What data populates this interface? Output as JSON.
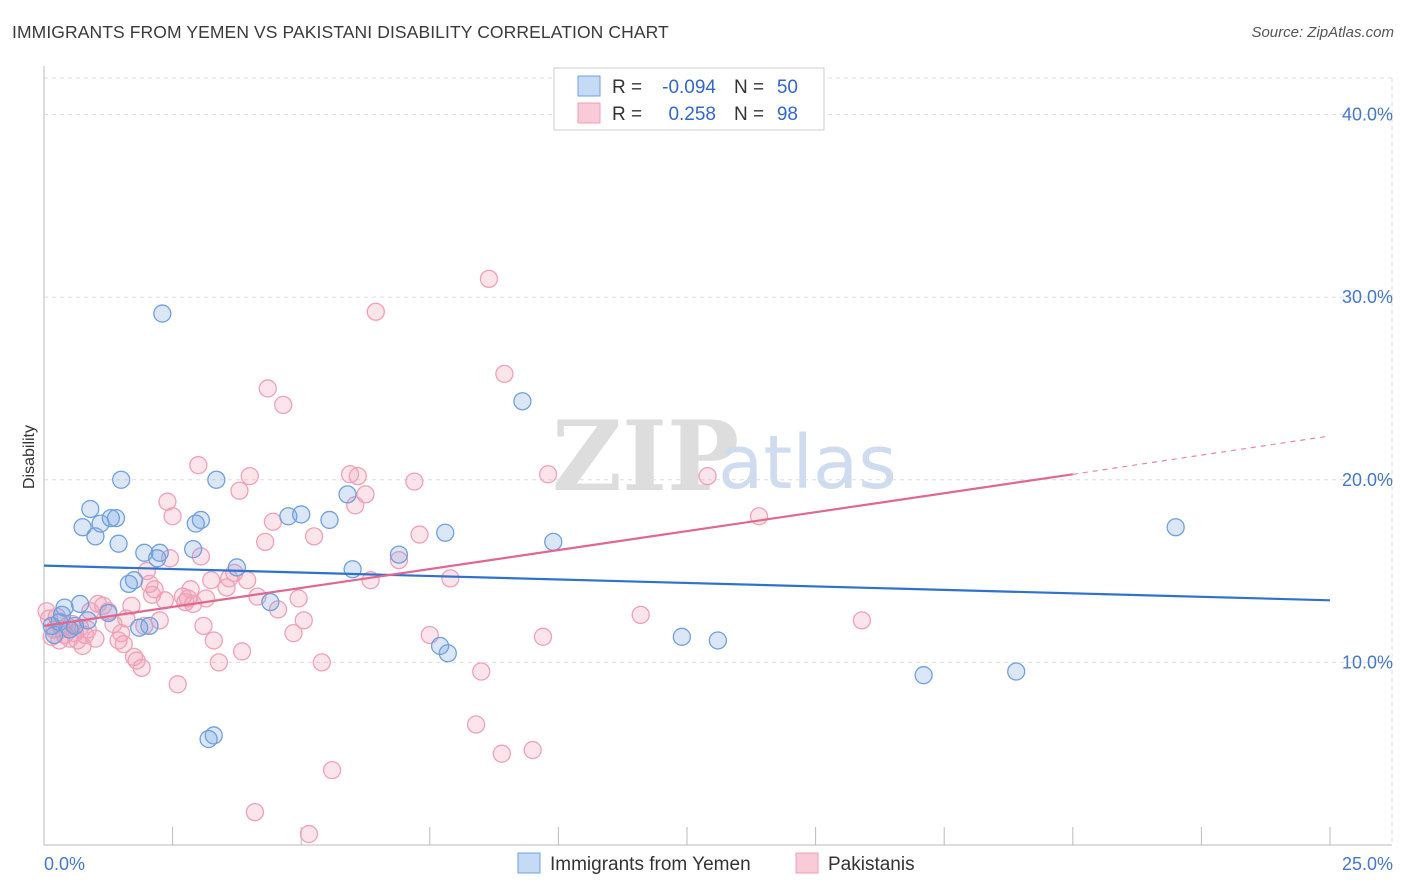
{
  "header": {
    "title": "IMMIGRANTS FROM YEMEN VS PAKISTANI DISABILITY CORRELATION CHART",
    "source": "Source: ZipAtlas.com"
  },
  "watermark": {
    "zip": "ZIP",
    "atlas": "atlas"
  },
  "colors": {
    "blue": "#6fa0e0",
    "blue_line": "#2e72cc",
    "pink": "#f0a0b8",
    "pink_line": "#e06890",
    "axis_text": "#4477cc",
    "grid": "#dddddd"
  },
  "legend": {
    "rows": [
      {
        "r_label": "R =",
        "r_value": "-0.094",
        "n_label": "N =",
        "n_value": "50"
      },
      {
        "r_label": "R =",
        "r_value": "0.258",
        "n_label": "N =",
        "n_value": "98"
      }
    ]
  },
  "chart_data": {
    "type": "scatter",
    "title": "IMMIGRANTS FROM YEMEN VS PAKISTANI DISABILITY CORRELATION CHART",
    "xlabel": "",
    "ylabel": "Disability",
    "xlim": [
      0,
      25
    ],
    "ylim": [
      0,
      42
    ],
    "x_tick_labels": [
      "0.0%",
      "25.0%"
    ],
    "y_ticks": [
      10,
      20,
      30,
      40
    ],
    "y_tick_labels": [
      "10.0%",
      "20.0%",
      "30.0%",
      "40.0%"
    ],
    "series": [
      {
        "name": "Immigrants from Yemen",
        "r": -0.094,
        "n": 50,
        "trend": {
          "x0": 0,
          "y0": 15.3,
          "x1": 25,
          "y1": 13.4
        },
        "points": [
          [
            0.2,
            11.5
          ],
          [
            0.3,
            12.2
          ],
          [
            0.35,
            12.6
          ],
          [
            0.4,
            13.0
          ],
          [
            0.5,
            11.8
          ],
          [
            0.6,
            12.0
          ],
          [
            0.7,
            13.2
          ],
          [
            0.75,
            17.4
          ],
          [
            0.85,
            12.3
          ],
          [
            0.9,
            18.4
          ],
          [
            1.0,
            16.9
          ],
          [
            1.1,
            17.6
          ],
          [
            1.25,
            12.7
          ],
          [
            1.3,
            17.9
          ],
          [
            1.4,
            17.9
          ],
          [
            1.45,
            16.5
          ],
          [
            1.5,
            20.0
          ],
          [
            1.65,
            14.3
          ],
          [
            1.75,
            14.5
          ],
          [
            1.85,
            11.9
          ],
          [
            1.95,
            16.0
          ],
          [
            2.05,
            12.0
          ],
          [
            2.2,
            15.7
          ],
          [
            2.25,
            16.0
          ],
          [
            2.3,
            29.1
          ],
          [
            2.9,
            16.2
          ],
          [
            2.95,
            17.6
          ],
          [
            3.05,
            17.8
          ],
          [
            3.2,
            5.8
          ],
          [
            3.3,
            6.0
          ],
          [
            3.35,
            20.0
          ],
          [
            3.75,
            15.2
          ],
          [
            4.4,
            13.3
          ],
          [
            4.75,
            18.0
          ],
          [
            5.0,
            18.1
          ],
          [
            5.55,
            17.8
          ],
          [
            5.9,
            19.2
          ],
          [
            6.0,
            15.1
          ],
          [
            6.9,
            15.9
          ],
          [
            7.7,
            10.9
          ],
          [
            7.85,
            10.5
          ],
          [
            7.8,
            17.1
          ],
          [
            9.3,
            24.3
          ],
          [
            9.9,
            16.6
          ],
          [
            12.4,
            11.4
          ],
          [
            13.1,
            11.2
          ],
          [
            17.1,
            9.3
          ],
          [
            18.9,
            9.5
          ],
          [
            22.0,
            17.4
          ],
          [
            0.15,
            12.0
          ]
        ]
      },
      {
        "name": "Pakistanis",
        "r": 0.258,
        "n": 98,
        "trend": {
          "x0": 0,
          "y0": 12.0,
          "x1": 20,
          "y1": 20.3
        },
        "trend_dashed": {
          "x0": 20,
          "y0": 20.3,
          "x1": 25,
          "y1": 22.4
        },
        "points": [
          [
            0.1,
            12.4
          ],
          [
            0.15,
            11.4
          ],
          [
            0.2,
            11.8
          ],
          [
            0.25,
            12.5
          ],
          [
            0.3,
            11.2
          ],
          [
            0.35,
            11.8
          ],
          [
            0.4,
            11.5
          ],
          [
            0.45,
            12.0
          ],
          [
            0.5,
            11.3
          ],
          [
            0.55,
            12.1
          ],
          [
            0.6,
            11.6
          ],
          [
            0.65,
            11.2
          ],
          [
            0.7,
            11.9
          ],
          [
            0.75,
            10.9
          ],
          [
            0.8,
            11.5
          ],
          [
            0.85,
            11.8
          ],
          [
            0.9,
            12.8
          ],
          [
            1.0,
            11.3
          ],
          [
            1.05,
            13.2
          ],
          [
            1.15,
            13.1
          ],
          [
            1.25,
            12.8
          ],
          [
            1.35,
            12.1
          ],
          [
            1.45,
            11.2
          ],
          [
            1.5,
            11.6
          ],
          [
            1.55,
            11.0
          ],
          [
            1.6,
            12.4
          ],
          [
            1.7,
            13.1
          ],
          [
            1.75,
            10.3
          ],
          [
            1.8,
            10.1
          ],
          [
            1.9,
            9.7
          ],
          [
            2.0,
            15.0
          ],
          [
            2.05,
            14.3
          ],
          [
            2.1,
            13.7
          ],
          [
            2.15,
            14.0
          ],
          [
            2.25,
            12.3
          ],
          [
            2.35,
            13.4
          ],
          [
            2.4,
            18.8
          ],
          [
            2.45,
            15.7
          ],
          [
            2.5,
            18.0
          ],
          [
            2.6,
            8.8
          ],
          [
            2.7,
            13.6
          ],
          [
            2.75,
            13.3
          ],
          [
            2.8,
            13.5
          ],
          [
            2.85,
            14.0
          ],
          [
            2.9,
            13.2
          ],
          [
            3.0,
            20.8
          ],
          [
            3.05,
            15.8
          ],
          [
            3.1,
            12.0
          ],
          [
            3.15,
            13.5
          ],
          [
            3.25,
            14.5
          ],
          [
            3.3,
            11.2
          ],
          [
            3.4,
            10.0
          ],
          [
            3.55,
            14.1
          ],
          [
            3.6,
            14.6
          ],
          [
            3.7,
            14.9
          ],
          [
            3.8,
            19.4
          ],
          [
            3.85,
            10.6
          ],
          [
            3.95,
            14.5
          ],
          [
            4.0,
            20.2
          ],
          [
            4.15,
            13.6
          ],
          [
            4.3,
            16.6
          ],
          [
            4.35,
            25.0
          ],
          [
            4.45,
            17.7
          ],
          [
            4.55,
            12.9
          ],
          [
            4.65,
            24.1
          ],
          [
            4.85,
            11.6
          ],
          [
            4.95,
            13.5
          ],
          [
            5.05,
            12.3
          ],
          [
            5.25,
            16.9
          ],
          [
            5.4,
            10.0
          ],
          [
            5.95,
            20.3
          ],
          [
            6.05,
            18.6
          ],
          [
            6.1,
            20.2
          ],
          [
            6.25,
            19.2
          ],
          [
            6.35,
            14.5
          ],
          [
            6.45,
            29.2
          ],
          [
            6.9,
            15.6
          ],
          [
            7.2,
            19.9
          ],
          [
            7.3,
            17.0
          ],
          [
            7.5,
            11.5
          ],
          [
            7.9,
            14.6
          ],
          [
            8.4,
            6.6
          ],
          [
            8.5,
            9.5
          ],
          [
            8.65,
            31.0
          ],
          [
            8.9,
            5.0
          ],
          [
            8.95,
            25.8
          ],
          [
            9.5,
            5.2
          ],
          [
            9.7,
            11.4
          ],
          [
            9.8,
            20.3
          ],
          [
            11.6,
            12.6
          ],
          [
            12.9,
            20.2
          ],
          [
            13.9,
            18.0
          ],
          [
            15.9,
            12.3
          ],
          [
            5.15,
            0.6
          ],
          [
            5.6,
            4.1
          ],
          [
            4.1,
            1.8
          ],
          [
            0.05,
            12.8
          ],
          [
            1.95,
            12.0
          ]
        ]
      }
    ]
  },
  "bottom_legend": {
    "items": [
      {
        "label": "Immigrants from Yemen"
      },
      {
        "label": "Pakistanis"
      }
    ]
  }
}
